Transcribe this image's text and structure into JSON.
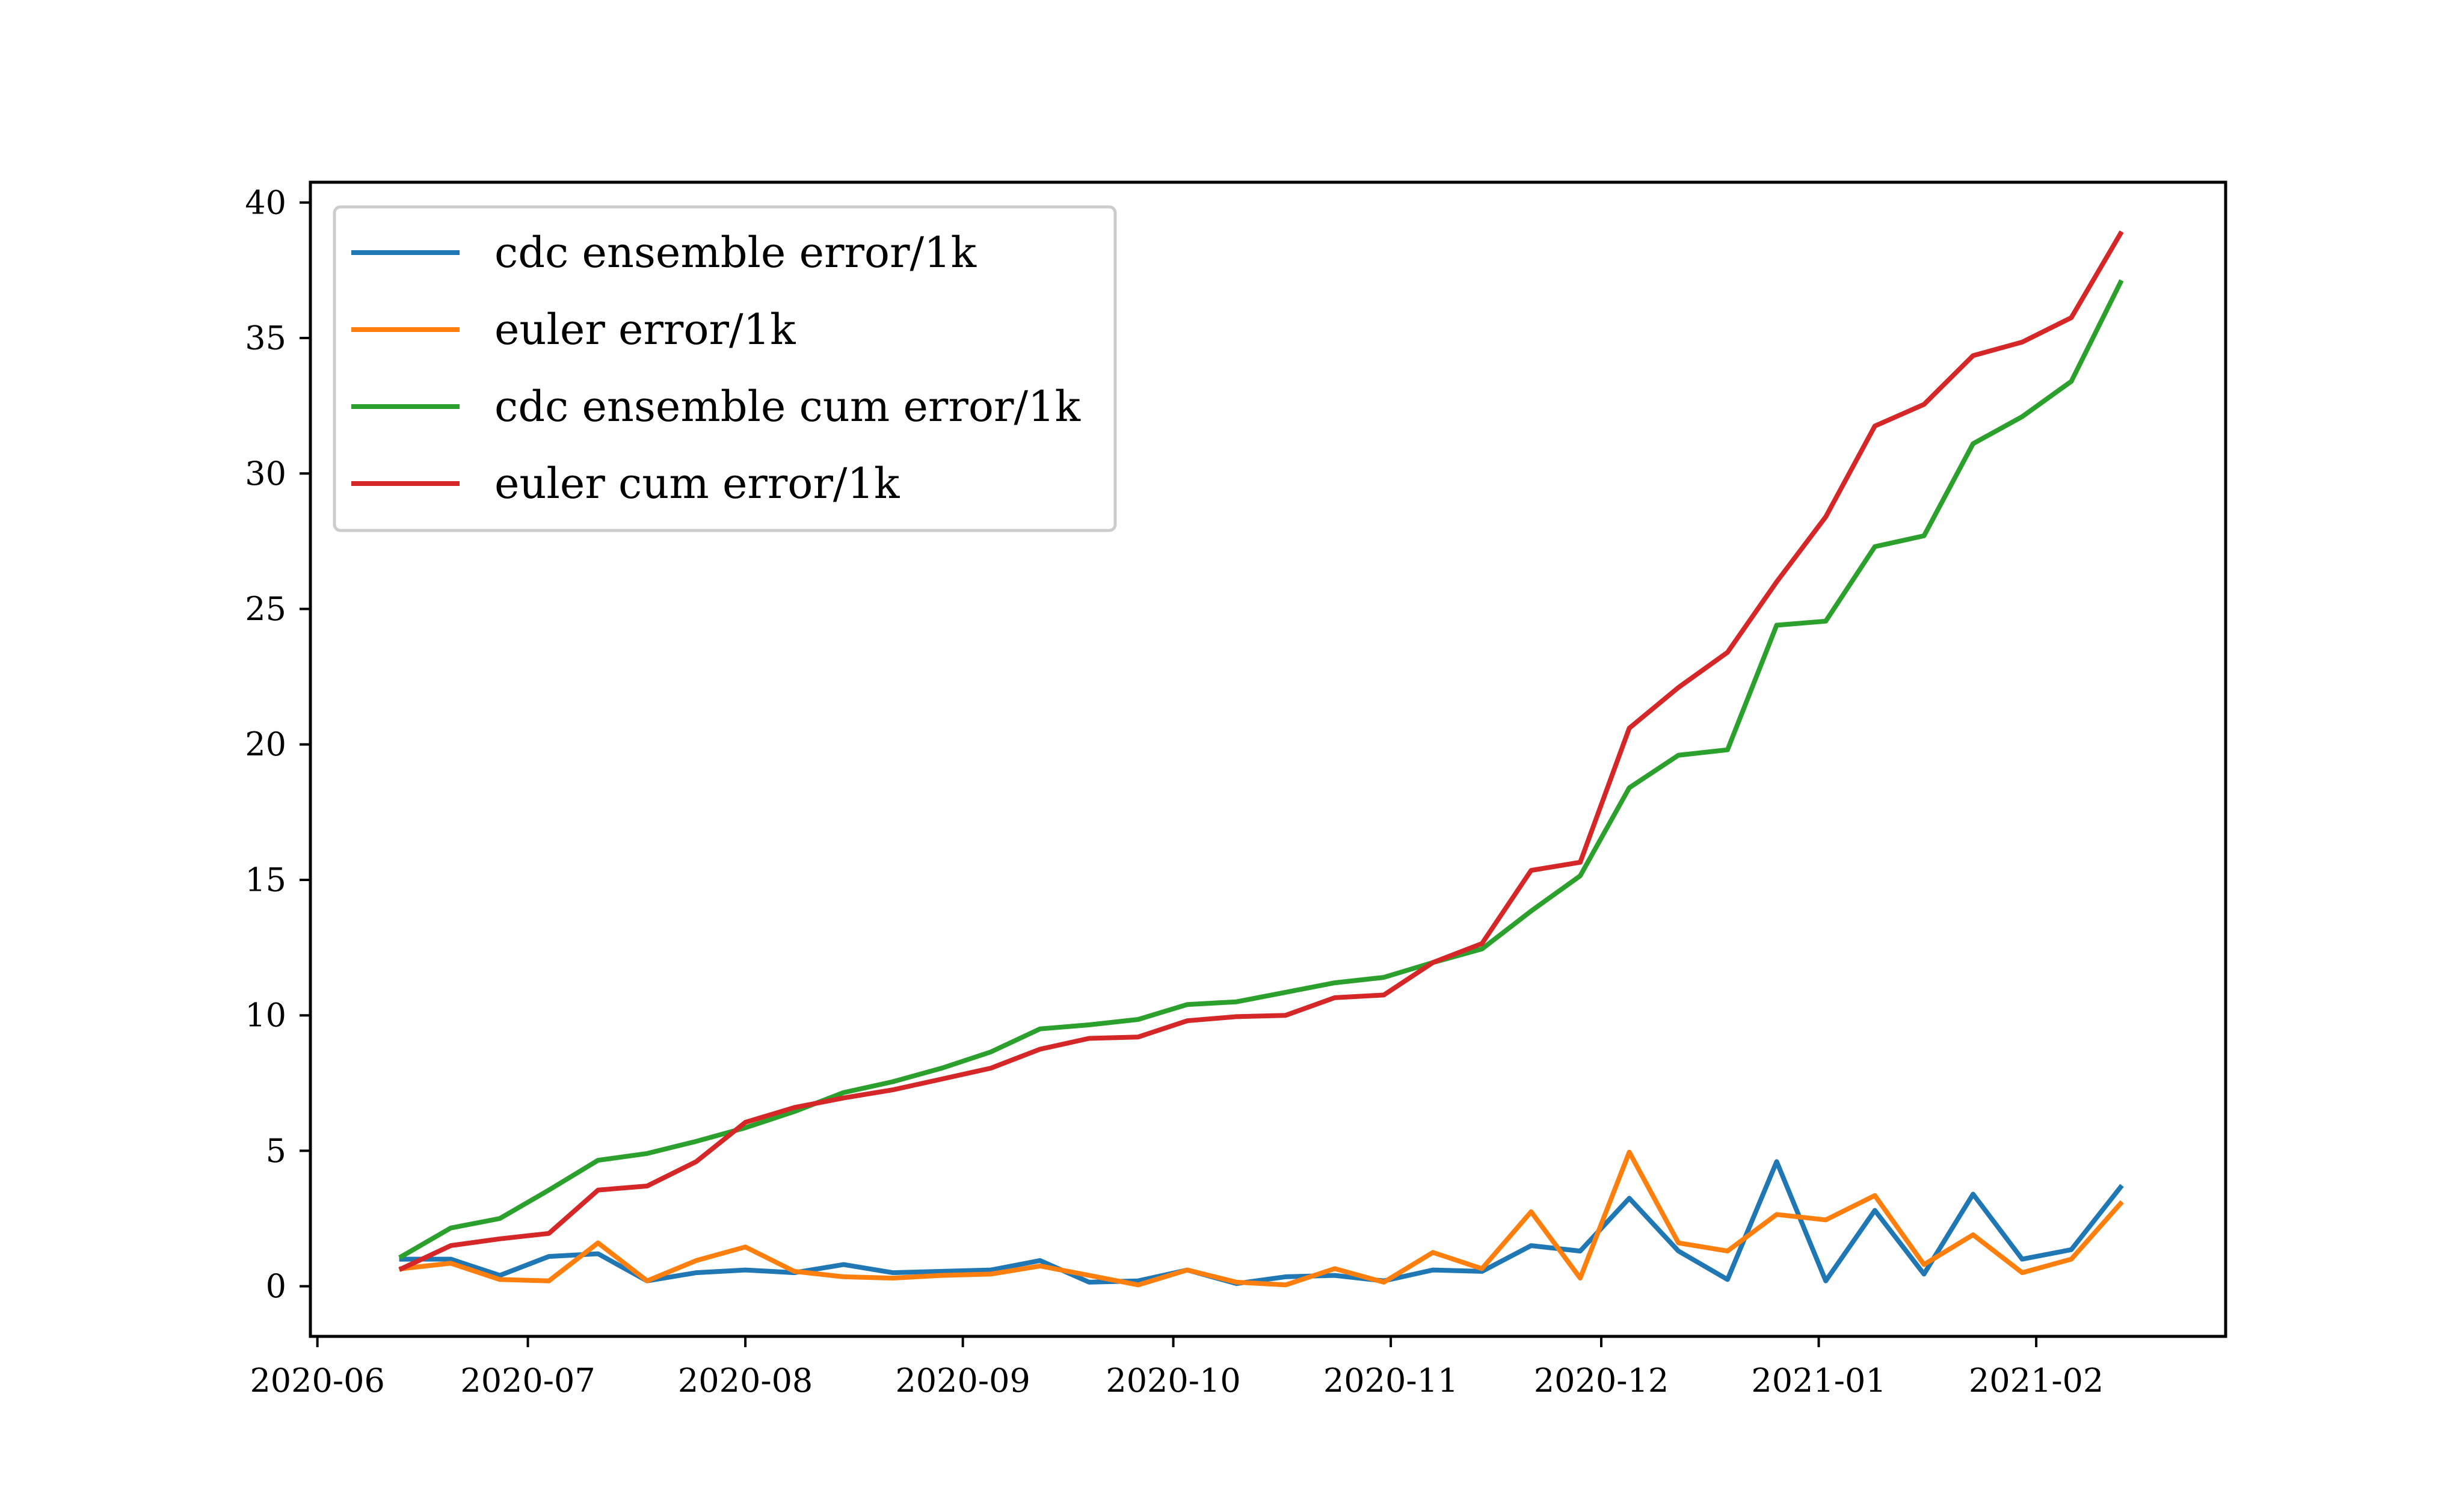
{
  "chart_data": {
    "type": "line",
    "title": "",
    "xlabel": "",
    "ylabel": "",
    "x_ticks": [
      "2020-06",
      "2020-07",
      "2020-08",
      "2020-09",
      "2020-10",
      "2020-11",
      "2020-12",
      "2021-01",
      "2021-02"
    ],
    "xlim": [
      "2020-05-31",
      "2021-02-28"
    ],
    "y_ticks": [
      0,
      5,
      10,
      15,
      20,
      25,
      30,
      35,
      40
    ],
    "ylim": [
      -1.85,
      40.75
    ],
    "grid": false,
    "legend_position": "top-left",
    "x": [
      "2020-06-13",
      "2020-06-20",
      "2020-06-27",
      "2020-07-04",
      "2020-07-11",
      "2020-07-18",
      "2020-07-25",
      "2020-08-01",
      "2020-08-08",
      "2020-08-15",
      "2020-08-22",
      "2020-08-29",
      "2020-09-05",
      "2020-09-12",
      "2020-09-19",
      "2020-09-26",
      "2020-10-03",
      "2020-10-10",
      "2020-10-17",
      "2020-10-24",
      "2020-10-31",
      "2020-11-07",
      "2020-11-14",
      "2020-11-21",
      "2020-11-28",
      "2020-12-05",
      "2020-12-12",
      "2020-12-19",
      "2020-12-26",
      "2021-01-02",
      "2021-01-09",
      "2021-01-16",
      "2021-01-23",
      "2021-01-30",
      "2021-02-06",
      "2021-02-13"
    ],
    "series": [
      {
        "name": "cdc ensemble error/1k",
        "color": "#1f77b4",
        "values": [
          1.0,
          1.0,
          0.4,
          1.1,
          1.2,
          0.2,
          0.5,
          0.6,
          0.5,
          0.8,
          0.5,
          0.55,
          0.6,
          0.95,
          0.15,
          0.2,
          0.6,
          0.1,
          0.35,
          0.4,
          0.2,
          0.6,
          0.55,
          1.5,
          1.3,
          3.25,
          1.3,
          0.25,
          4.6,
          0.2,
          2.8,
          0.45,
          3.4,
          1.0,
          1.35,
          3.65
        ]
      },
      {
        "name": "euler error/1k",
        "color": "#ff7f0e",
        "values": [
          0.65,
          0.85,
          0.25,
          0.2,
          1.6,
          0.2,
          0.95,
          1.45,
          0.55,
          0.35,
          0.3,
          0.4,
          0.45,
          0.75,
          0.4,
          0.05,
          0.6,
          0.15,
          0.05,
          0.65,
          0.15,
          1.25,
          0.65,
          2.75,
          0.3,
          4.95,
          1.6,
          1.3,
          2.65,
          2.45,
          3.35,
          0.8,
          1.9,
          0.5,
          1.0,
          3.05
        ]
      },
      {
        "name": "cdc ensemble cum error/1k",
        "color": "#2ca02c",
        "values": [
          1.1,
          2.15,
          2.5,
          3.55,
          4.65,
          4.9,
          5.35,
          5.85,
          6.45,
          7.15,
          7.55,
          8.05,
          8.65,
          9.5,
          9.65,
          9.85,
          10.4,
          10.5,
          10.85,
          11.2,
          11.4,
          11.95,
          12.45,
          13.85,
          15.15,
          18.4,
          19.6,
          19.8,
          24.4,
          24.55,
          27.3,
          27.7,
          31.1,
          32.1,
          33.4,
          37.05
        ]
      },
      {
        "name": "euler cum error/1k",
        "color": "#d62728",
        "values": [
          0.65,
          1.5,
          1.75,
          1.95,
          3.55,
          3.7,
          4.6,
          6.05,
          6.6,
          6.95,
          7.25,
          7.65,
          8.05,
          8.75,
          9.15,
          9.2,
          9.8,
          9.95,
          10.0,
          10.65,
          10.75,
          11.95,
          12.65,
          15.35,
          15.65,
          20.6,
          22.1,
          23.4,
          26.0,
          28.4,
          31.75,
          32.55,
          34.35,
          34.85,
          35.75,
          38.85
        ]
      }
    ]
  }
}
